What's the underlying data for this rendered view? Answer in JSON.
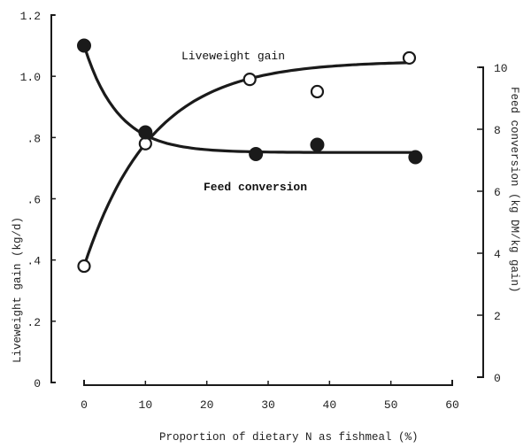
{
  "chart_data": {
    "type": "line",
    "title": "",
    "xlabel": "Proportion of dietary N as fishmeal (%)",
    "ylabel": "Liveweight gain (kg/d)",
    "y2label": "Feed conversion (kg DM/kg gain)",
    "xlim": [
      0,
      60
    ],
    "ylim": [
      0,
      1.2
    ],
    "y2lim": [
      0,
      10
    ],
    "x_ticks": [
      0,
      10,
      20,
      30,
      40,
      50,
      60
    ],
    "x_tick_labels": [
      "0",
      "10",
      "20",
      "30",
      "40",
      "50",
      "60"
    ],
    "y_ticks": [
      0,
      0.2,
      0.4,
      0.6,
      0.8,
      1.0,
      1.2
    ],
    "y_tick_labels": [
      "0",
      ".2",
      ".4",
      ".6",
      ".8",
      "1.0",
      "1.2"
    ],
    "y2_ticks": [
      0,
      2,
      4,
      6,
      8,
      10
    ],
    "y2_tick_labels": [
      "0",
      "2",
      "4",
      "6",
      "8",
      "10"
    ],
    "grid": false,
    "legend": "inline labels",
    "series": [
      {
        "name": "Liveweight gain",
        "axis": "left",
        "marker": "open-circle",
        "x": [
          0,
          10,
          27,
          38,
          53
        ],
        "values": [
          0.38,
          0.78,
          0.99,
          0.95,
          1.06
        ],
        "fitted_curve": true
      },
      {
        "name": "Feed conversion",
        "axis": "right",
        "marker": "filled-circle",
        "x": [
          0,
          10,
          28,
          38,
          54
        ],
        "values": [
          10.7,
          7.9,
          7.2,
          7.5,
          7.1
        ],
        "fitted_curve": true
      }
    ],
    "annotations": [
      "Liveweight gain",
      "Feed conversion"
    ]
  },
  "labels": {
    "x_axis_title": "Proportion of dietary N as fishmeal (%)",
    "y_axis_title": "Liveweight gain (kg/d)",
    "y2_axis_title": "Feed conversion (kg DM/kg gain)",
    "series_lwg": "Liveweight gain",
    "series_fc": "Feed conversion"
  },
  "colors": {
    "ink": "#1a1a1a",
    "background": "#ffffff"
  }
}
